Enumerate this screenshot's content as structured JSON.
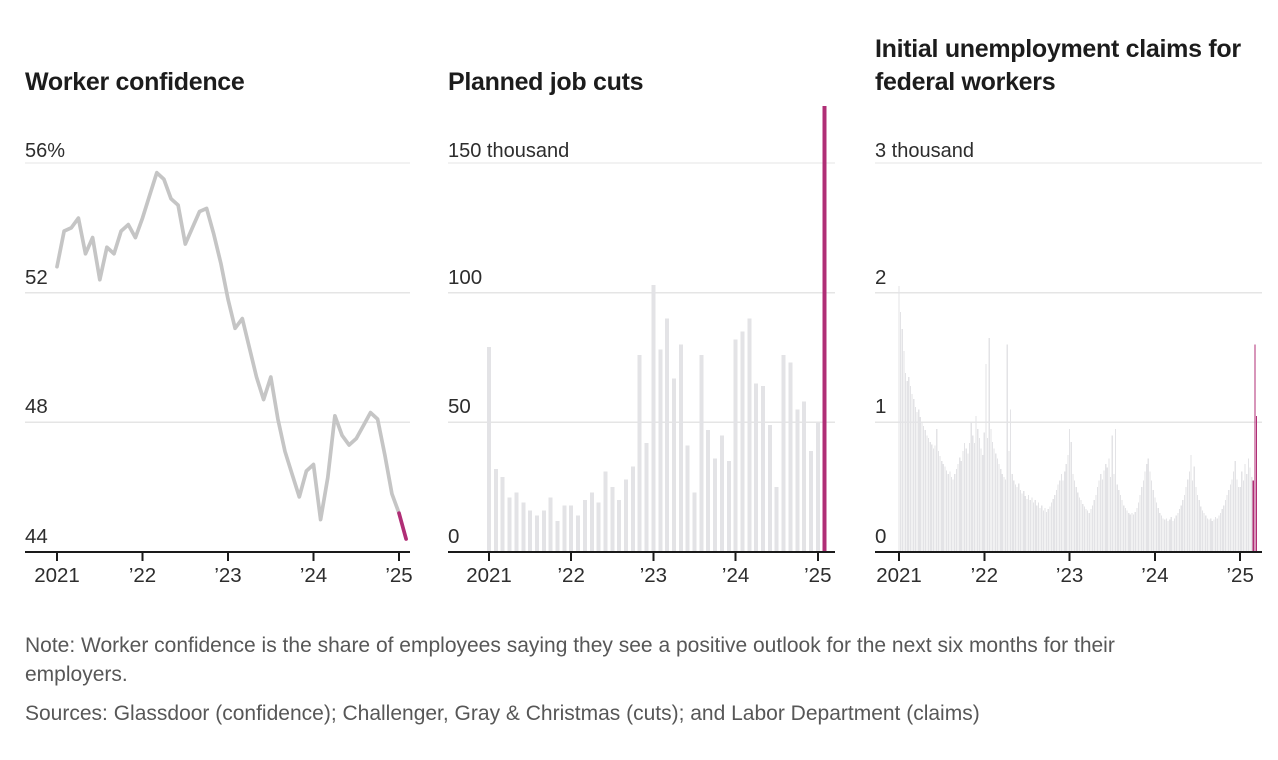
{
  "figure": {
    "note": "Note: Worker confidence is the share of employees saying they see a positive outlook for the next six months for their employers.",
    "sources": "Sources: Glassdoor (confidence); Challenger, Gray & Christmas (cuts); and Labor Department (claims)"
  },
  "colors": {
    "accent": "#b02e76",
    "line_gray": "#c5c5c5",
    "bar_gray": "#e3e3e6",
    "grid": "#e5e5e5",
    "axis": "#1a1a1a"
  },
  "x_tick_labels": [
    "2021",
    "’22",
    "’23",
    "’24",
    "’25"
  ],
  "chart_data": [
    {
      "id": "worker-confidence",
      "type": "line",
      "title": "Worker confidence",
      "unit_label": "56%",
      "y_labels_below": [
        "52",
        "48",
        "44"
      ],
      "y_max": 56,
      "y_min": 44,
      "frequency": "monthly",
      "x_start": "2021-01",
      "x_end": "2025-02",
      "highlight_last_n": 2,
      "values": [
        52.8,
        53.9,
        54.0,
        54.3,
        53.2,
        53.7,
        52.4,
        53.4,
        53.2,
        53.9,
        54.1,
        53.7,
        54.3,
        55.0,
        55.7,
        55.5,
        54.9,
        54.7,
        53.5,
        54.0,
        54.5,
        54.6,
        53.8,
        52.9,
        51.8,
        50.9,
        51.2,
        50.3,
        49.4,
        48.7,
        49.4,
        48.1,
        47.1,
        46.4,
        45.7,
        46.5,
        46.7,
        45.0,
        46.3,
        48.2,
        47.6,
        47.3,
        47.5,
        47.9,
        48.3,
        48.1,
        47.0,
        45.8,
        45.2,
        44.4
      ]
    },
    {
      "id": "planned-job-cuts",
      "type": "bar",
      "title": "Planned job cuts",
      "unit_label": "150 thousand",
      "y_labels_below": [
        "100",
        "50",
        "0"
      ],
      "y_max": 150,
      "y_min": 0,
      "frequency": "monthly",
      "x_start": "2021-01",
      "x_end": "2025-02",
      "highlight_last_n": 1,
      "values": [
        79,
        32,
        29,
        21,
        23,
        19,
        16,
        14,
        16,
        21,
        12,
        18,
        18,
        14,
        20,
        23,
        19,
        31,
        25,
        20,
        28,
        33,
        76,
        42,
        103,
        78,
        90,
        67,
        80,
        41,
        23,
        76,
        47,
        36,
        45,
        35,
        82,
        85,
        90,
        65,
        64,
        49,
        25,
        76,
        73,
        55,
        58,
        39,
        50,
        172
      ]
    },
    {
      "id": "federal-unemployment-claims",
      "type": "bar",
      "title": "Initial unemployment claims for federal workers",
      "unit_label": "3 thousand",
      "y_labels_below": [
        "2",
        "1",
        "0"
      ],
      "y_max": 3,
      "y_min": 0,
      "frequency": "weekly",
      "x_start": "2021-01",
      "x_end": "2025-03",
      "highlight_last_n": 3,
      "values": [
        2.05,
        1.85,
        1.72,
        1.55,
        1.38,
        1.32,
        1.35,
        1.28,
        1.22,
        1.18,
        1.12,
        1.08,
        1.1,
        1.04,
        1.0,
        0.97,
        0.94,
        0.9,
        0.88,
        0.85,
        0.83,
        0.8,
        0.82,
        0.95,
        0.78,
        0.74,
        0.7,
        0.68,
        0.66,
        0.63,
        0.6,
        0.62,
        0.58,
        0.56,
        0.6,
        0.64,
        0.68,
        0.73,
        0.7,
        0.78,
        0.84,
        0.8,
        0.76,
        0.84,
        1.0,
        0.9,
        0.84,
        1.05,
        0.95,
        0.88,
        0.8,
        0.75,
        0.92,
        1.45,
        0.88,
        1.65,
        0.95,
        0.85,
        0.8,
        0.76,
        0.72,
        0.68,
        0.64,
        0.6,
        0.58,
        0.56,
        1.6,
        0.78,
        1.1,
        0.6,
        0.55,
        0.52,
        0.5,
        0.53,
        0.48,
        0.45,
        0.47,
        0.43,
        0.41,
        0.44,
        0.4,
        0.42,
        0.38,
        0.4,
        0.36,
        0.38,
        0.34,
        0.36,
        0.32,
        0.34,
        0.31,
        0.33,
        0.35,
        0.38,
        0.41,
        0.44,
        0.48,
        0.52,
        0.55,
        0.6,
        0.55,
        0.62,
        0.68,
        0.75,
        0.95,
        0.85,
        0.6,
        0.55,
        0.5,
        0.46,
        0.42,
        0.4,
        0.37,
        0.35,
        0.33,
        0.32,
        0.3,
        0.33,
        0.36,
        0.4,
        0.44,
        0.5,
        0.55,
        0.6,
        0.56,
        0.63,
        0.68,
        0.65,
        0.72,
        0.58,
        0.9,
        0.6,
        0.95,
        0.52,
        0.48,
        0.44,
        0.4,
        0.36,
        0.34,
        0.32,
        0.3,
        0.29,
        0.3,
        0.29,
        0.31,
        0.34,
        0.38,
        0.44,
        0.5,
        0.55,
        0.62,
        0.68,
        0.72,
        0.62,
        0.55,
        0.48,
        0.42,
        0.38,
        0.34,
        0.3,
        0.28,
        0.26,
        0.25,
        0.26,
        0.24,
        0.25,
        0.27,
        0.24,
        0.26,
        0.28,
        0.3,
        0.33,
        0.36,
        0.4,
        0.44,
        0.5,
        0.56,
        0.62,
        0.75,
        0.55,
        0.66,
        0.5,
        0.44,
        0.4,
        0.35,
        0.32,
        0.3,
        0.28,
        0.26,
        0.25,
        0.26,
        0.24,
        0.25,
        0.27,
        0.26,
        0.28,
        0.3,
        0.33,
        0.36,
        0.4,
        0.44,
        0.48,
        0.52,
        0.56,
        0.62,
        0.7,
        0.56,
        0.5,
        0.5,
        0.62,
        0.55,
        0.68,
        0.6,
        0.72,
        0.65,
        0.58,
        0.55,
        1.6,
        1.05
      ]
    }
  ]
}
